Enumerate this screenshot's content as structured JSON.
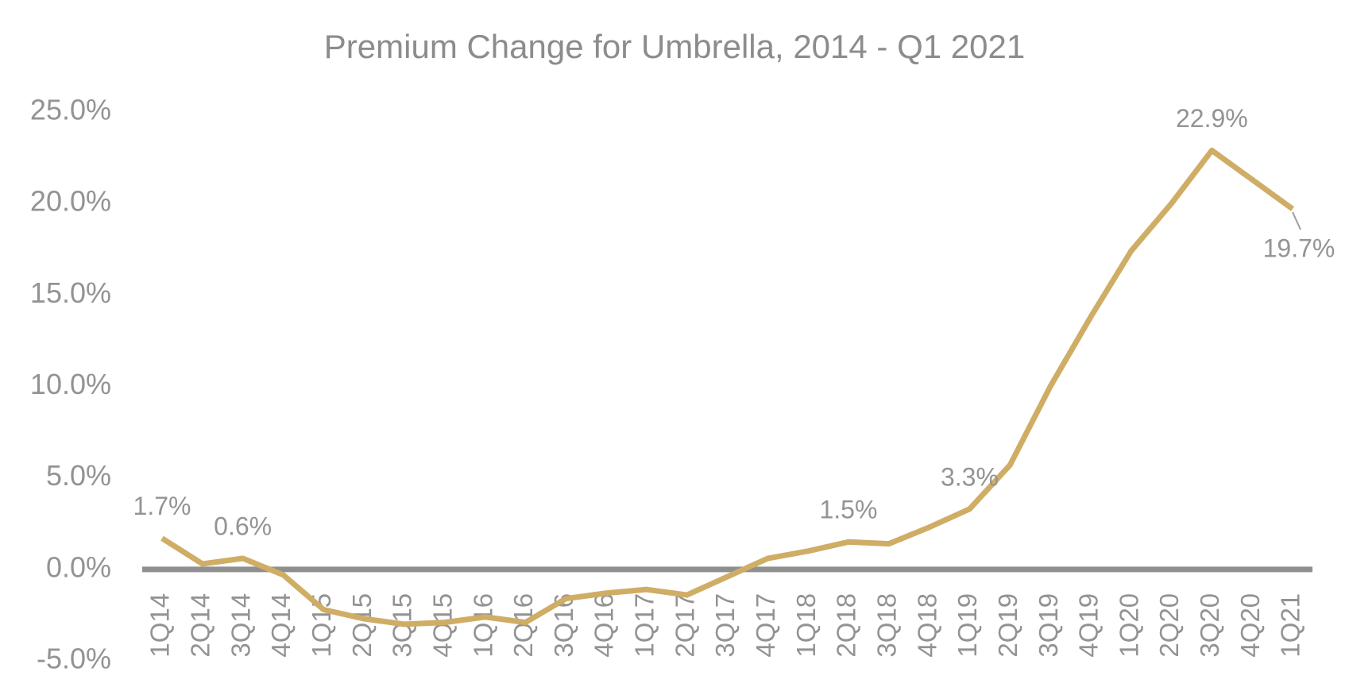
{
  "chart_data": {
    "type": "line",
    "title": "Premium Change for Umbrella, 2014 - Q1 2021",
    "categories": [
      "1Q14",
      "2Q14",
      "3Q14",
      "4Q14",
      "1Q15",
      "2Q15",
      "3Q15",
      "4Q15",
      "1Q16",
      "2Q16",
      "3Q16",
      "4Q16",
      "1Q17",
      "2Q17",
      "3Q17",
      "4Q17",
      "1Q18",
      "2Q18",
      "3Q18",
      "4Q18",
      "1Q19",
      "2Q19",
      "3Q19",
      "4Q19",
      "1Q20",
      "2Q20",
      "3Q20",
      "4Q20",
      "1Q21"
    ],
    "values": [
      1.7,
      0.3,
      0.6,
      -0.3,
      -2.2,
      -2.7,
      -3.0,
      -2.9,
      -2.6,
      -2.9,
      -1.6,
      -1.3,
      -1.1,
      -1.4,
      -0.4,
      0.6,
      1.0,
      1.5,
      1.4,
      2.3,
      3.3,
      5.7,
      10.0,
      13.8,
      17.4,
      20.0,
      22.9,
      21.3,
      19.7
    ],
    "value_labels": [
      "1.7%",
      null,
      "0.6%",
      null,
      null,
      null,
      null,
      null,
      null,
      null,
      null,
      null,
      null,
      null,
      null,
      null,
      null,
      "1.5%",
      null,
      null,
      "3.3%",
      null,
      null,
      null,
      null,
      null,
      "22.9%",
      null,
      "19.7%"
    ],
    "color": "#cfad65",
    "ylim": [
      -5,
      25
    ],
    "yticks": [
      {
        "value": -5,
        "label": "-5.0%"
      },
      {
        "value": 0,
        "label": "0.0%"
      },
      {
        "value": 5,
        "label": "5.0%"
      },
      {
        "value": 10,
        "label": "10.0%"
      },
      {
        "value": 15,
        "label": "15.0%"
      },
      {
        "value": 20,
        "label": "20.0%"
      },
      {
        "value": 25,
        "label": "25.0%"
      }
    ]
  }
}
